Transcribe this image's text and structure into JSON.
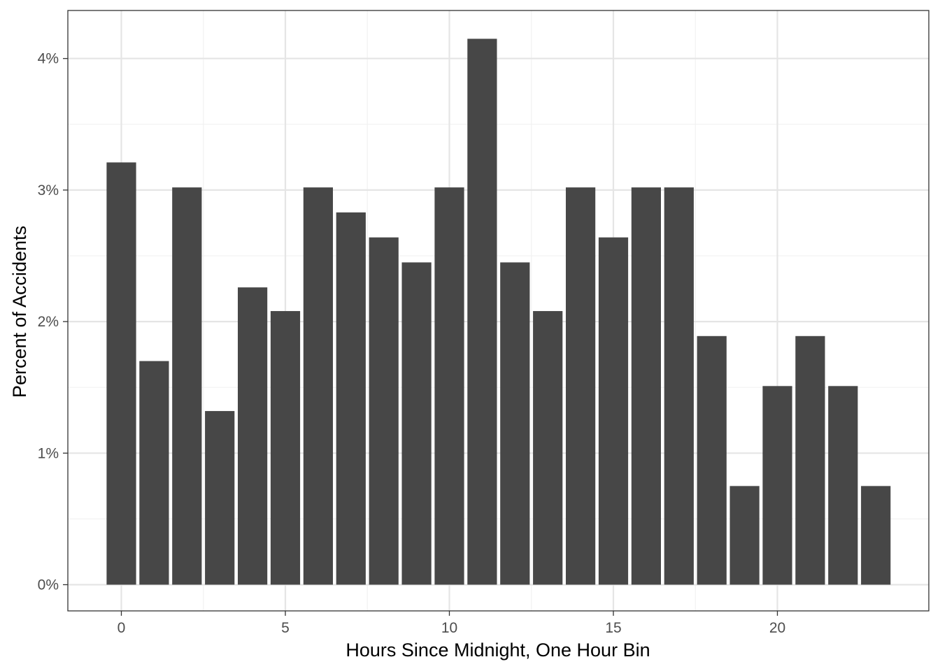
{
  "chart_data": {
    "type": "bar",
    "title": "",
    "xlabel": "Hours Since Midnight, One Hour Bin",
    "ylabel": "Percent of Accidents",
    "x": [
      0,
      1,
      2,
      3,
      4,
      5,
      6,
      7,
      8,
      9,
      10,
      11,
      12,
      13,
      14,
      15,
      16,
      17,
      18,
      19,
      20,
      21,
      22,
      23
    ],
    "values": [
      3.21,
      1.7,
      3.02,
      1.32,
      2.26,
      2.08,
      3.02,
      2.83,
      2.64,
      2.45,
      3.02,
      4.15,
      2.45,
      2.08,
      3.02,
      2.64,
      3.02,
      3.02,
      1.89,
      0.75,
      1.51,
      1.89,
      1.51,
      0.75
    ],
    "xlim": [
      -0.5,
      23.5
    ],
    "ylim": [
      0,
      4.15
    ],
    "x_ticks": [
      0,
      5,
      10,
      15,
      20
    ],
    "x_tick_labels": [
      "0",
      "5",
      "10",
      "15",
      "20"
    ],
    "y_ticks": [
      0,
      1,
      2,
      3,
      4
    ],
    "y_tick_labels": [
      "0%",
      "1%",
      "2%",
      "3%",
      "4%"
    ],
    "grid": true,
    "legend": "none",
    "colors": {
      "bar": "#474747",
      "grid_major": "#e5e5e5",
      "grid_minor": "#f2f2f2",
      "panel_border": "#333333"
    }
  }
}
